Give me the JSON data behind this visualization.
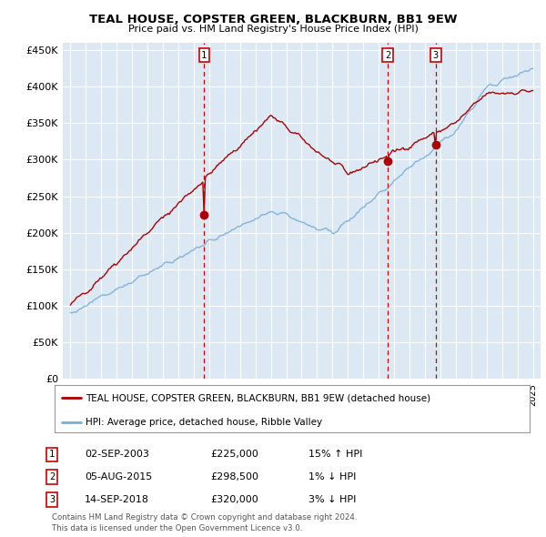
{
  "title": "TEAL HOUSE, COPSTER GREEN, BLACKBURN, BB1 9EW",
  "subtitle": "Price paid vs. HM Land Registry's House Price Index (HPI)",
  "bg_color": "#dce9f5",
  "grid_color": "#ffffff",
  "hpi_color": "#7aaed6",
  "price_color": "#aa0000",
  "vline_color": "#cc0000",
  "ylim": [
    0,
    460000
  ],
  "yticks": [
    0,
    50000,
    100000,
    150000,
    200000,
    250000,
    300000,
    350000,
    400000,
    450000
  ],
  "ytick_labels": [
    "£0",
    "£50K",
    "£100K",
    "£150K",
    "£200K",
    "£250K",
    "£300K",
    "£350K",
    "£400K",
    "£450K"
  ],
  "sales": [
    {
      "date_num": 2003.67,
      "price": 225000,
      "label": "1"
    },
    {
      "date_num": 2015.58,
      "price": 298500,
      "label": "2"
    },
    {
      "date_num": 2018.7,
      "price": 320000,
      "label": "3"
    }
  ],
  "sale_table": [
    {
      "label": "1",
      "date": "02-SEP-2003",
      "price": "£225,000",
      "change": "15% ↑ HPI"
    },
    {
      "label": "2",
      "date": "05-AUG-2015",
      "price": "£298,500",
      "change": "1% ↓ HPI"
    },
    {
      "label": "3",
      "date": "14-SEP-2018",
      "price": "£320,000",
      "change": "3% ↓ HPI"
    }
  ],
  "legend_house": "TEAL HOUSE, COPSTER GREEN, BLACKBURN, BB1 9EW (detached house)",
  "legend_hpi": "HPI: Average price, detached house, Ribble Valley",
  "footer": "Contains HM Land Registry data © Crown copyright and database right 2024.\nThis data is licensed under the Open Government Licence v3.0.",
  "xmin": 1994.5,
  "xmax": 2025.5
}
